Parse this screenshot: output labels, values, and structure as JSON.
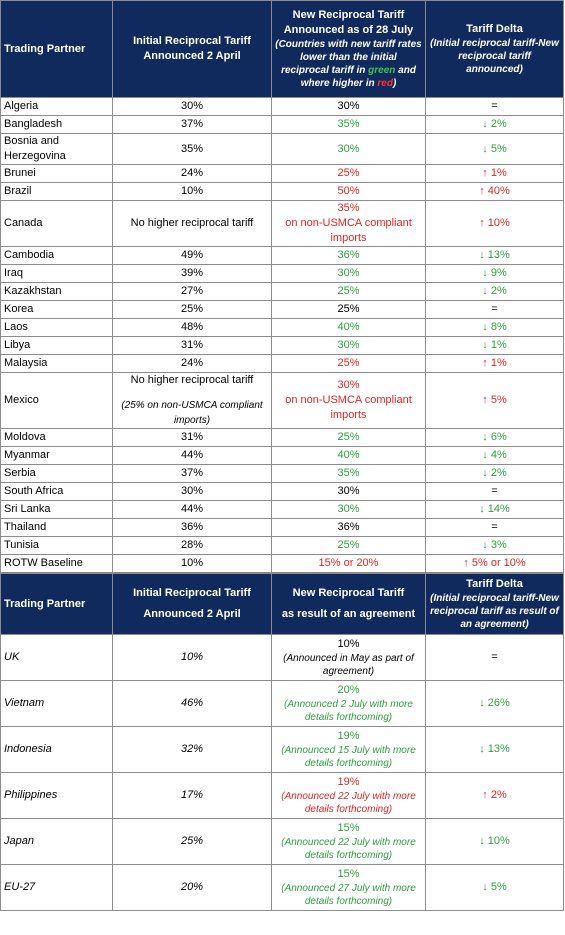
{
  "table1": {
    "header": {
      "partner": "Trading Partner",
      "initial": "Initial Reciprocal Tariff Announced 2 April",
      "new_title": "New Reciprocal Tariff Announced as of 28 July",
      "new_note": [
        "(Countries with new tariff rates lower than the initial reciprocal tariff in ",
        "green",
        " and where higher in ",
        "red",
        ")"
      ],
      "delta_title": "Tariff Delta",
      "delta_note": "(Initial reciprocal tariff-New reciprocal tariff announced)"
    },
    "rows": [
      {
        "cells": [
          "Algeria",
          "30%",
          "30%",
          "="
        ],
        "color": "#000000"
      },
      {
        "cells": [
          "Bangladesh",
          "37%",
          "35%",
          "↓ 2%"
        ],
        "color": "#2e9e3e"
      },
      {
        "cells": [
          "Bosnia and Herzegovina",
          "35%",
          "30%",
          "↓ 5%"
        ],
        "color": "#2e9e3e"
      },
      {
        "cells": [
          "Brunei",
          "24%",
          "25%",
          "↑ 1%"
        ],
        "color": "#e02424"
      },
      {
        "cells": [
          "Brazil",
          "10%",
          "50%",
          "↑ 40%"
        ],
        "color": "#e02424"
      },
      {
        "cells": [
          "Canada",
          "No higher reciprocal tariff",
          [
            "35%",
            "on non-USMCA compliant imports"
          ],
          "↑ 10%"
        ],
        "color": "#e02424"
      },
      {
        "cells": [
          "Cambodia",
          "49%",
          "36%",
          "↓ 13%"
        ],
        "color": "#2e9e3e"
      },
      {
        "cells": [
          "Iraq",
          "39%",
          "30%",
          "↓ 9%"
        ],
        "color": "#2e9e3e"
      },
      {
        "cells": [
          "Kazakhstan",
          "27%",
          "25%",
          "↓ 2%"
        ],
        "color": "#2e9e3e"
      },
      {
        "cells": [
          "Korea",
          "25%",
          "25%",
          "="
        ],
        "color": "#000000"
      },
      {
        "cells": [
          "Laos",
          "48%",
          "40%",
          "↓ 8%"
        ],
        "color": "#2e9e3e"
      },
      {
        "cells": [
          "Libya",
          "31%",
          "30%",
          "↓ 1%"
        ],
        "color": "#2e9e3e"
      },
      {
        "cells": [
          "Malaysia",
          "24%",
          "25%",
          "↑ 1%"
        ],
        "color": "#e02424"
      },
      {
        "cells": [
          "Mexico",
          [
            "No higher reciprocal tariff",
            "(25% on non-USMCA compliant imports)"
          ],
          [
            "30%",
            "on non-USMCA compliant imports"
          ],
          "↑ 5%"
        ],
        "color": "#e02424"
      },
      {
        "cells": [
          "Moldova",
          "31%",
          "25%",
          "↓ 6%"
        ],
        "color": "#2e9e3e"
      },
      {
        "cells": [
          "Myanmar",
          "44%",
          "40%",
          "↓ 4%"
        ],
        "color": "#2e9e3e"
      },
      {
        "cells": [
          "Serbia",
          "37%",
          "35%",
          "↓ 2%"
        ],
        "color": "#2e9e3e"
      },
      {
        "cells": [
          "South Africa",
          "30%",
          "30%",
          "="
        ],
        "color": "#000000"
      },
      {
        "cells": [
          "Sri Lanka",
          "44%",
          "30%",
          "↓ 14%"
        ],
        "color": "#2e9e3e"
      },
      {
        "cells": [
          "Thailand",
          "36%",
          "36%",
          "="
        ],
        "color": "#000000"
      },
      {
        "cells": [
          "Tunisia",
          "28%",
          "25%",
          "↓ 3%"
        ],
        "color": "#2e9e3e"
      },
      {
        "cells": [
          "ROTW Baseline",
          "10%",
          "15% or 20%",
          "↑ 5% or 10%"
        ],
        "color": "#e02424"
      }
    ]
  },
  "table2": {
    "header": {
      "partner": "Trading Partner",
      "initial": [
        "Initial Reciprocal Tariff",
        "Announced 2 April"
      ],
      "new": [
        "New Reciprocal Tariff",
        "as result of an agreement"
      ],
      "delta_title": "Tariff Delta",
      "delta_note": "(Initial reciprocal tariff-New reciprocal tariff as result of an agreement)"
    },
    "rows": [
      {
        "cells": [
          "UK",
          "10%",
          [
            "10%",
            "(Announced in May as part of agreement)"
          ],
          "="
        ],
        "color": "#000000"
      },
      {
        "cells": [
          "Vietnam",
          "46%",
          [
            "20%",
            "(Announced 2 July with more details forthcoming)"
          ],
          "↓ 26%"
        ],
        "color": "#2e9e3e"
      },
      {
        "cells": [
          "Indonesia",
          "32%",
          [
            "19%",
            "(Announced 15 July with more details forthcoming)"
          ],
          "↓ 13%"
        ],
        "color": "#2e9e3e"
      },
      {
        "cells": [
          "Philippines",
          "17%",
          [
            "19%",
            "(Announced 22 July with more details forthcoming)"
          ],
          "↑ 2%"
        ],
        "color": "#e02424"
      },
      {
        "cells": [
          "Japan",
          "25%",
          [
            "15%",
            "(Announced 22 July with more details forthcoming)"
          ],
          "↓ 10%"
        ],
        "color": "#2e9e3e"
      },
      {
        "cells": [
          "EU-27",
          "20%",
          [
            "15%",
            "(Announced 27 July with more details forthcoming)"
          ],
          "↓ 5%"
        ],
        "color": "#2e9e3e"
      }
    ]
  }
}
